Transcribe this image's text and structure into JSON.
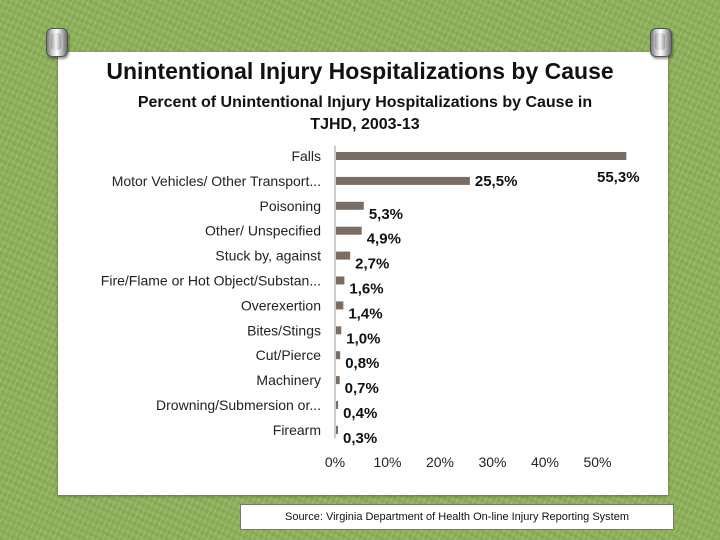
{
  "slide": {
    "title": "Unintentional Injury Hospitalizations by Cause",
    "source": "Source: Virginia Department of Health On-line Injury Reporting System"
  },
  "colors": {
    "bar": "#7a6e64",
    "background": "#8fb35a"
  },
  "chart_data": {
    "type": "bar",
    "orientation": "horizontal",
    "title": "Percent of Unintentional Injury Hospitalizations by Cause in TJHD, 2003-13",
    "categories": [
      "Falls",
      "Motor Vehicles/ Other Transport...",
      "Poisoning",
      "Other/ Unspecified",
      "Stuck by, against",
      "Fire/Flame or Hot Object/Substan...",
      "Overexertion",
      "Bites/Stings",
      "Cut/Pierce",
      "Machinery",
      "Drowning/Submersion or...",
      "Firearm"
    ],
    "values": [
      55.3,
      25.5,
      5.3,
      4.9,
      2.7,
      1.6,
      1.4,
      1.0,
      0.8,
      0.7,
      0.4,
      0.3
    ],
    "data_labels": [
      "55,3%",
      "25,5%",
      "5,3%",
      "4,9%",
      "2,7%",
      "1,6%",
      "1,4%",
      "1,0%",
      "0,8%",
      "0,7%",
      "0,4%",
      "0,3%"
    ],
    "x_ticks": [
      "0%",
      "10%",
      "20%",
      "30%",
      "40%",
      "50%"
    ],
    "xlim": [
      0,
      55
    ],
    "grid": false,
    "legend": "none"
  }
}
